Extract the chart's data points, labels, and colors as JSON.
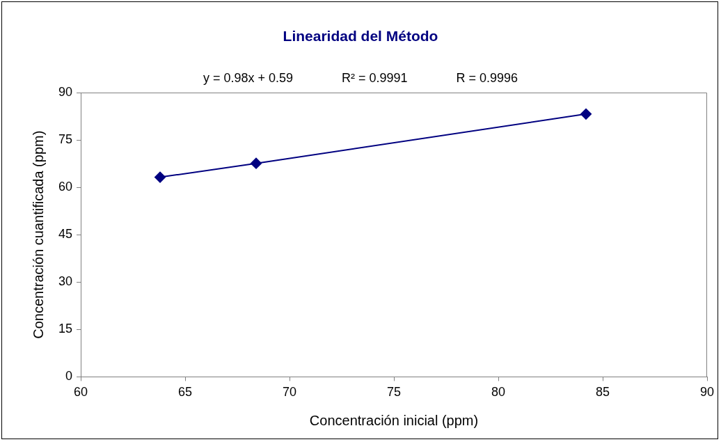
{
  "chart_data": {
    "type": "line",
    "title": "Linearidad del Método",
    "xlabel": "Concentración inicial (ppm)",
    "ylabel": "Concentración cuantificada (ppm)",
    "annotations": [
      "y = 0.98x + 0.59",
      "R² = 0.9991",
      "R = 0.9996"
    ],
    "series": [
      {
        "color": "#000080",
        "x": [
          63.8,
          68.4,
          84.2
        ],
        "values": [
          63.2,
          67.6,
          83.2
        ]
      }
    ],
    "xlim": [
      60,
      90
    ],
    "xticks": [
      60,
      65,
      70,
      75,
      80,
      85,
      90
    ],
    "ylim": [
      0,
      90
    ],
    "yticks": [
      0,
      15,
      30,
      45,
      60,
      75,
      90
    ],
    "grid": false,
    "legend": false,
    "marker": "diamond",
    "line_style": "solid"
  }
}
